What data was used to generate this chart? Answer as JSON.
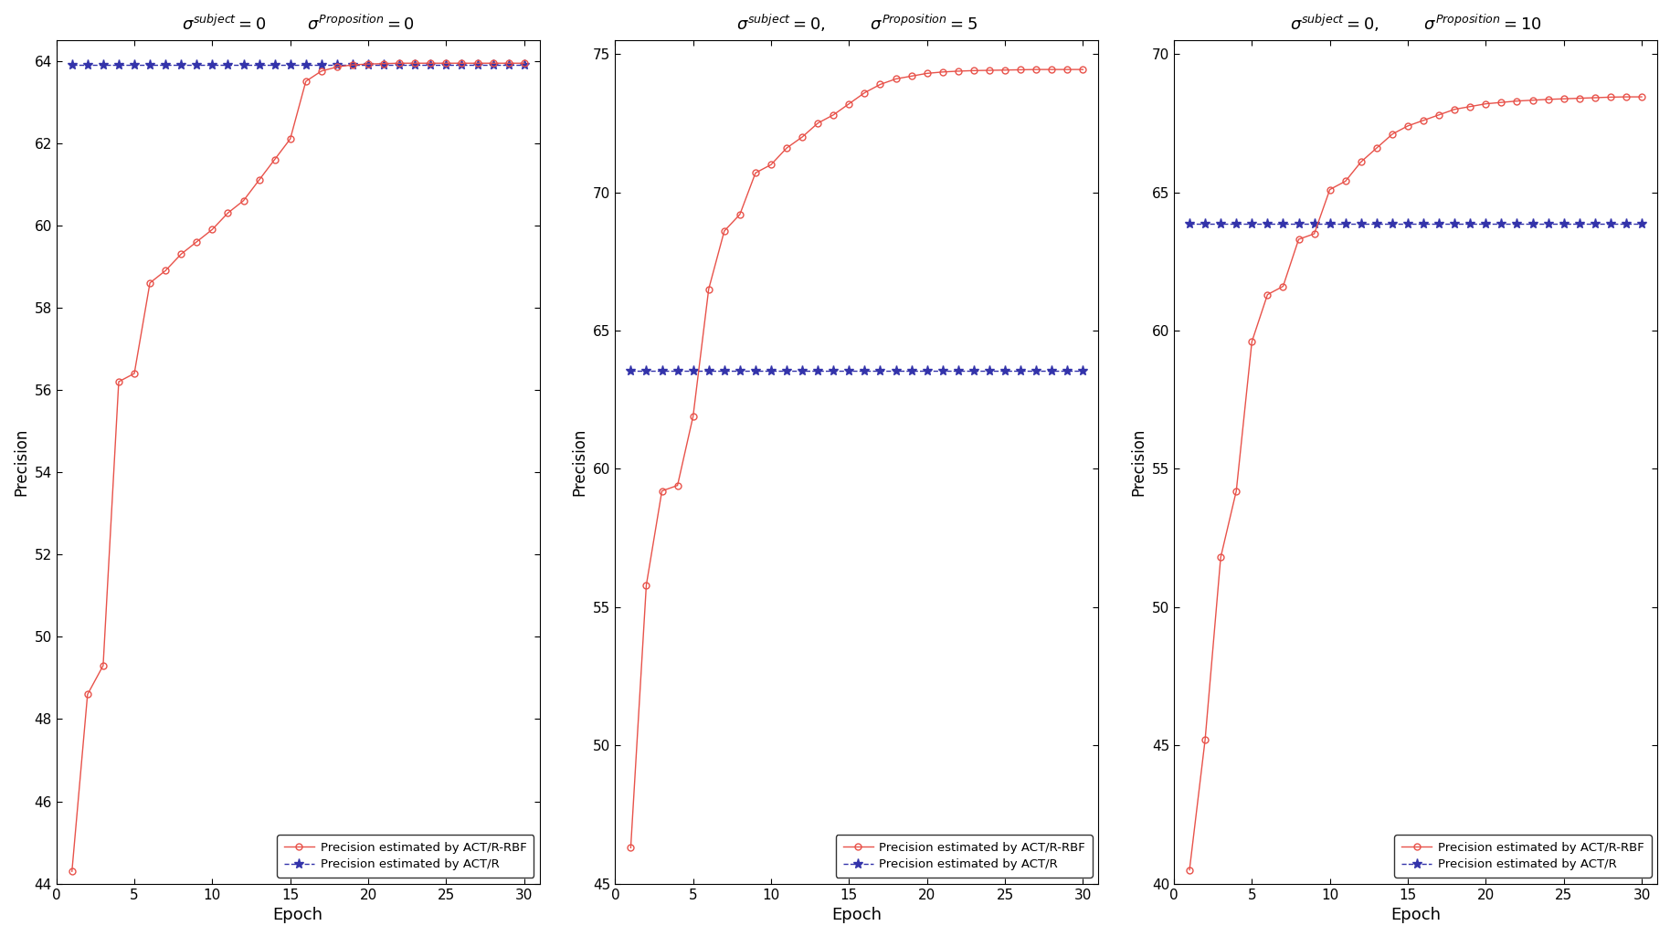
{
  "plots": [
    {
      "title_text": "$\\sigma^{subject}=0$        $\\sigma^{Proposition}=0$",
      "ylim": [
        44,
        64.5
      ],
      "yticks": [
        44,
        46,
        48,
        50,
        52,
        54,
        56,
        58,
        60,
        62,
        64
      ],
      "actr_rbf_values": [
        44.3,
        48.6,
        49.3,
        56.2,
        56.4,
        58.6,
        58.9,
        59.3,
        59.6,
        59.9,
        60.3,
        60.6,
        61.1,
        61.6,
        62.1,
        63.5,
        63.75,
        63.85,
        63.9,
        63.92,
        63.93,
        63.94,
        63.94,
        63.94,
        63.94,
        63.94,
        63.94,
        63.94,
        63.94,
        63.94
      ],
      "actr_value": 63.9
    },
    {
      "title_text": "$\\sigma^{subject}=0,$        $\\sigma^{Proposition}=5$",
      "ylim": [
        45,
        75.5
      ],
      "yticks": [
        45,
        50,
        55,
        60,
        65,
        70,
        75
      ],
      "actr_rbf_values": [
        46.3,
        55.8,
        59.2,
        59.4,
        61.9,
        66.5,
        68.6,
        69.2,
        70.7,
        71.0,
        71.6,
        72.0,
        72.5,
        72.8,
        73.2,
        73.6,
        73.9,
        74.1,
        74.2,
        74.3,
        74.35,
        74.38,
        74.4,
        74.41,
        74.42,
        74.43,
        74.44,
        74.44,
        74.44,
        74.44
      ],
      "actr_value": 63.55
    },
    {
      "title_text": "$\\sigma^{subject}=0,$        $\\sigma^{Proposition}=10$",
      "ylim": [
        40,
        70.5
      ],
      "yticks": [
        40,
        45,
        50,
        55,
        60,
        65,
        70
      ],
      "actr_rbf_values": [
        40.5,
        45.2,
        51.8,
        54.2,
        59.6,
        61.3,
        61.6,
        63.3,
        63.5,
        65.1,
        65.4,
        66.1,
        66.6,
        67.1,
        67.4,
        67.6,
        67.8,
        68.0,
        68.1,
        68.2,
        68.25,
        68.3,
        68.33,
        68.36,
        68.38,
        68.4,
        68.42,
        68.44,
        68.45,
        68.45
      ],
      "actr_value": 63.85
    }
  ],
  "epochs": [
    1,
    2,
    3,
    4,
    5,
    6,
    7,
    8,
    9,
    10,
    11,
    12,
    13,
    14,
    15,
    16,
    17,
    18,
    19,
    20,
    21,
    22,
    23,
    24,
    25,
    26,
    27,
    28,
    29,
    30
  ],
  "actr_rbf_color": "#E8524A",
  "actr_color": "#3333AA",
  "line_width": 1.0,
  "marker_size_circle": 5,
  "marker_size_star": 8,
  "legend_actr_rbf": "Precision estimated by ACT/R-RBF",
  "legend_actr": "Precision estimated by ACT/R",
  "xlabel": "Epoch",
  "ylabel": "Precision",
  "fig_width": 18.28,
  "fig_height": 10.25
}
